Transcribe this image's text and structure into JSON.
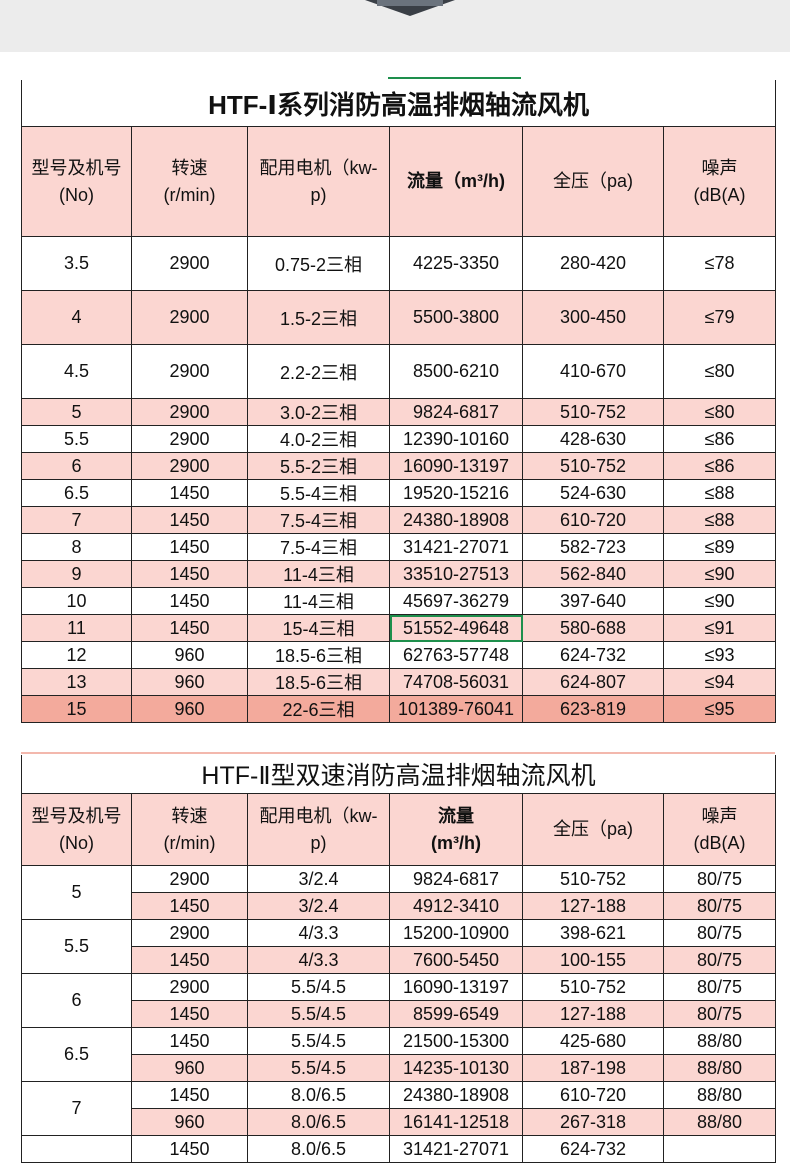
{
  "table1": {
    "title": "HTF-Ⅰ系列消防高温排烟轴流风机",
    "headers": [
      "型号及机号\n(No)",
      "转速\n(r/min)",
      "配用电机（kw-p)",
      "流量（m³/h)",
      "全压（pa)",
      "噪声\n(dB(A)"
    ],
    "rows": [
      [
        "3.5",
        "2900",
        "0.75-2三相",
        "4225-3350",
        "280-420",
        "≤78"
      ],
      [
        "4",
        "2900",
        "1.5-2三相",
        "5500-3800",
        "300-450",
        "≤79"
      ],
      [
        "4.5",
        "2900",
        "2.2-2三相",
        "8500-6210",
        "410-670",
        "≤80"
      ],
      [
        "5",
        "2900",
        "3.0-2三相",
        "9824-6817",
        "510-752",
        "≤80"
      ],
      [
        "5.5",
        "2900",
        "4.0-2三相",
        "12390-10160",
        "428-630",
        "≤86"
      ],
      [
        "6",
        "2900",
        "5.5-2三相",
        "16090-13197",
        "510-752",
        "≤86"
      ],
      [
        "6.5",
        "1450",
        "5.5-4三相",
        "19520-15216",
        "524-630",
        "≤88"
      ],
      [
        "7",
        "1450",
        "7.5-4三相",
        "24380-18908",
        "610-720",
        "≤88"
      ],
      [
        "8",
        "1450",
        "7.5-4三相",
        "31421-27071",
        "582-723",
        "≤89"
      ],
      [
        "9",
        "1450",
        "11-4三相",
        "33510-27513",
        "562-840",
        "≤90"
      ],
      [
        "10",
        "1450",
        "11-4三相",
        "45697-36279",
        "397-640",
        "≤90"
      ],
      [
        "11",
        "1450",
        "15-4三相",
        "51552-49648",
        "580-688",
        "≤91"
      ],
      [
        "12",
        "960",
        "18.5-6三相",
        "62763-57748",
        "624-732",
        "≤93"
      ],
      [
        "13",
        "960",
        "18.5-6三相",
        "74708-56031",
        "624-807",
        "≤94"
      ],
      [
        "15",
        "960",
        "22-6三相",
        "101389-76041",
        "623-819",
        "≤95"
      ]
    ]
  },
  "table2": {
    "title": "HTF-Ⅱ型双速消防高温排烟轴流风机",
    "headers": [
      "型号及机号\n(No)",
      "转速\n(r/min)",
      "配用电机（kw-p)",
      "流量\n(m³/h)",
      "全压（pa)",
      "噪声\n(dB(A)"
    ],
    "groups": [
      {
        "no": "5",
        "rows": [
          [
            "2900",
            "3/2.4",
            "9824-6817",
            "510-752",
            "80/75"
          ],
          [
            "1450",
            "3/2.4",
            "4912-3410",
            "127-188",
            "80/75"
          ]
        ]
      },
      {
        "no": "5.5",
        "rows": [
          [
            "2900",
            "4/3.3",
            "15200-10900",
            "398-621",
            "80/75"
          ],
          [
            "1450",
            "4/3.3",
            "7600-5450",
            "100-155",
            "80/75"
          ]
        ]
      },
      {
        "no": "6",
        "rows": [
          [
            "2900",
            "5.5/4.5",
            "16090-13197",
            "510-752",
            "80/75"
          ],
          [
            "1450",
            "5.5/4.5",
            "8599-6549",
            "127-188",
            "80/75"
          ]
        ]
      },
      {
        "no": "6.5",
        "rows": [
          [
            "1450",
            "5.5/4.5",
            "21500-15300",
            "425-680",
            "88/80"
          ],
          [
            "960",
            "5.5/4.5",
            "14235-10130",
            "187-198",
            "88/80"
          ]
        ]
      },
      {
        "no": "7",
        "rows": [
          [
            "1450",
            "8.0/6.5",
            "24380-18908",
            "610-720",
            "88/80"
          ],
          [
            "960",
            "8.0/6.5",
            "16141-12518",
            "267-318",
            "88/80"
          ]
        ]
      },
      {
        "no": "",
        "rows": [
          [
            "1450",
            "8.0/6.5",
            "31421-27071",
            "624-732",
            ""
          ]
        ]
      }
    ]
  },
  "colors": {
    "pink": "#fbd6d1",
    "deep_pink": "#f3aa9c",
    "selection": "#1e8f4c"
  }
}
